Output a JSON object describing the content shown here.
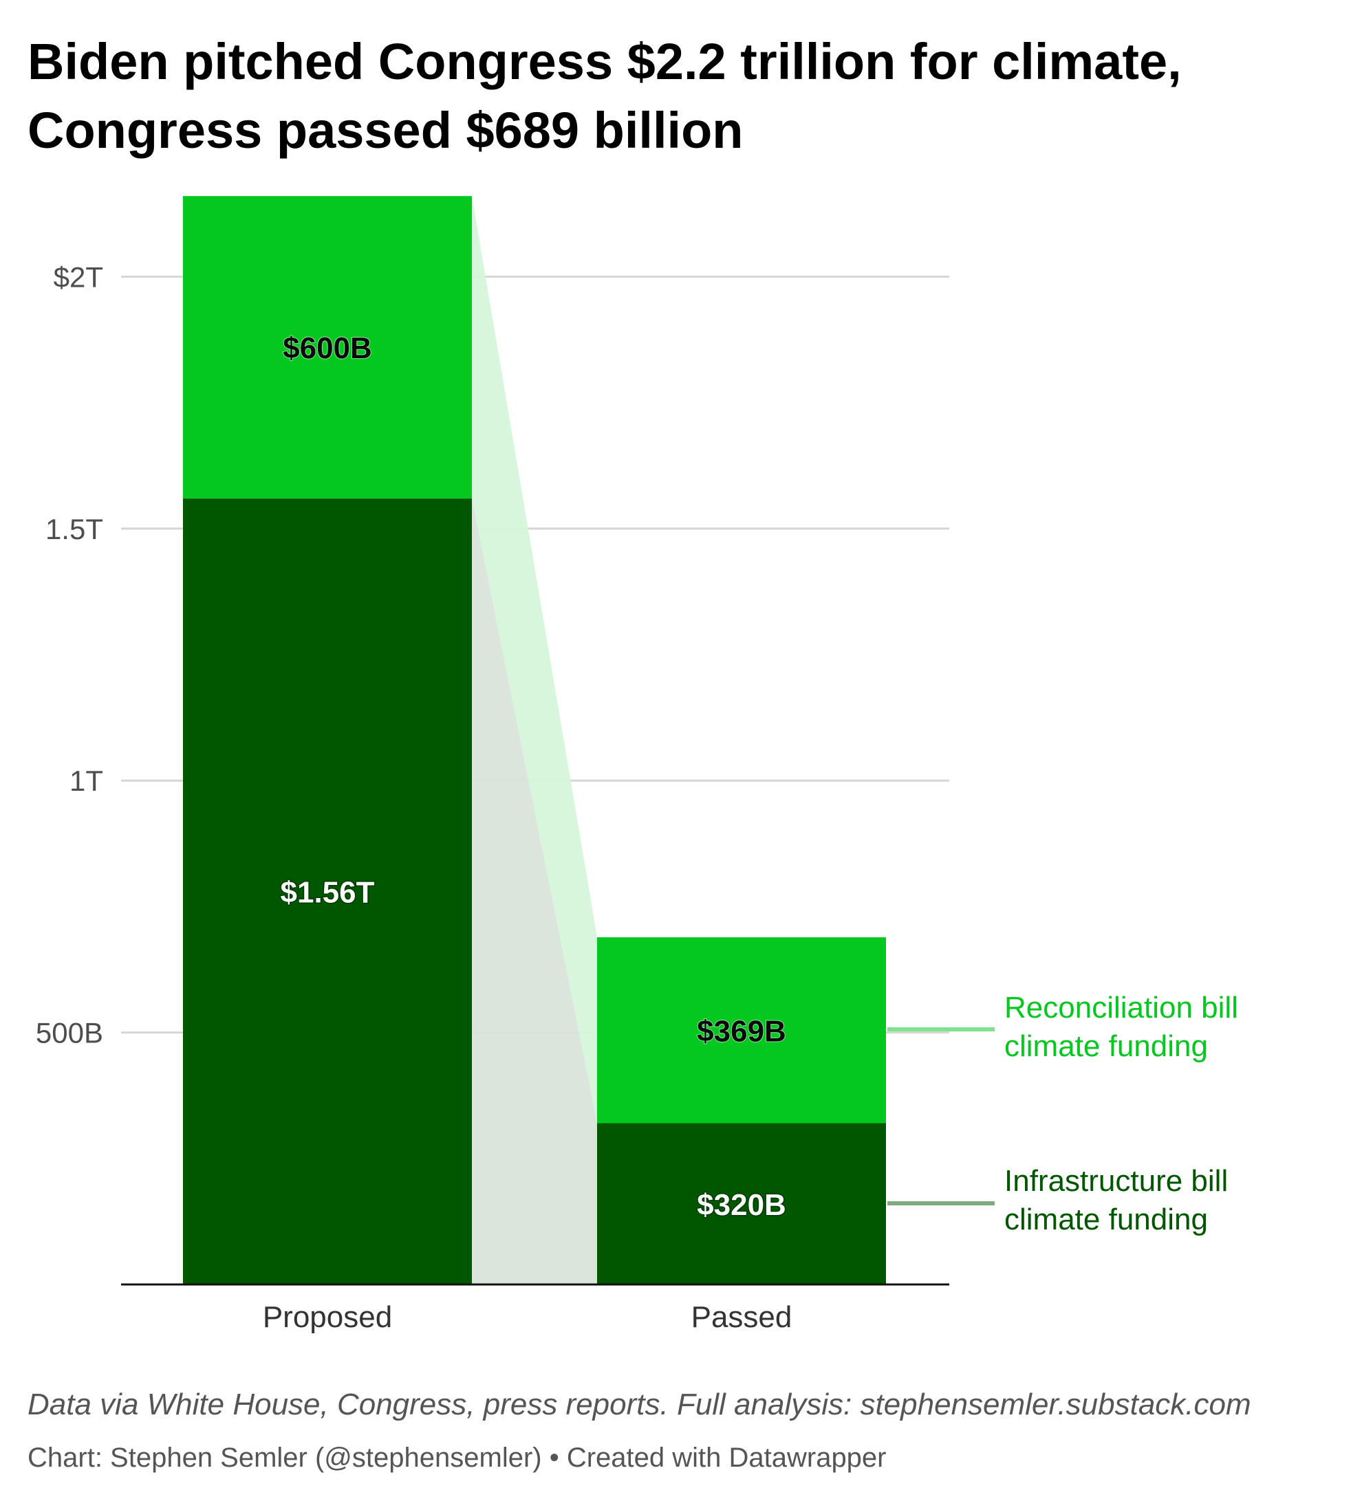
{
  "title_line1": "Biden pitched Congress $2.2 trillion for climate,",
  "title_line2": "Congress passed $689 billion",
  "chart_data": {
    "type": "bar",
    "stacked": true,
    "categories": [
      "Proposed",
      "Passed"
    ],
    "series": [
      {
        "name": "Infrastructure bill climate funding",
        "legend_lines": [
          "Infrastructure bill",
          "climate funding"
        ],
        "values": [
          1560,
          320
        ],
        "labels": [
          "$1.56T",
          "$320B"
        ],
        "color": "#005700"
      },
      {
        "name": "Reconciliation bill climate funding",
        "legend_lines": [
          "Reconciliation bill",
          "climate funding"
        ],
        "values": [
          600,
          369
        ],
        "labels": [
          "$600B",
          "$369B"
        ],
        "color": "#04c71f"
      }
    ],
    "y_unit": "billions of dollars",
    "ylim": [
      0,
      2160
    ],
    "yticks": [
      {
        "value": 500,
        "label": "500B"
      },
      {
        "value": 1000,
        "label": "1T"
      },
      {
        "value": 1500,
        "label": "1.5T"
      },
      {
        "value": 2000,
        "label": "$2T"
      }
    ],
    "grid": true,
    "legend_placement": "right",
    "colors": {
      "axis_labels": "#4d4d4d",
      "gridline": "#d6d6d6",
      "infra_legend": "#005700",
      "recon_legend": "#04c71f"
    }
  },
  "footer": {
    "source": "Data via White House, Congress, press reports. Full analysis: stephensemler.substack.com",
    "credit": "Chart: Stephen Semler (@stephensemler) • Created with Datawrapper"
  }
}
